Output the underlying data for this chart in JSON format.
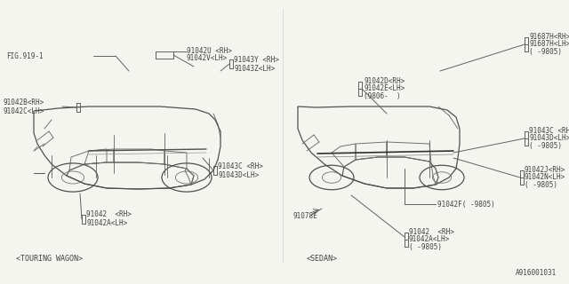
{
  "bg_color": "#f5f5f0",
  "fig_id": "A916001031",
  "wagon_label": "<TOURING WAGON>",
  "sedan_label": "<SEDAN>",
  "font_color": "#404040",
  "line_color": "#606060",
  "text_size": 5.5
}
